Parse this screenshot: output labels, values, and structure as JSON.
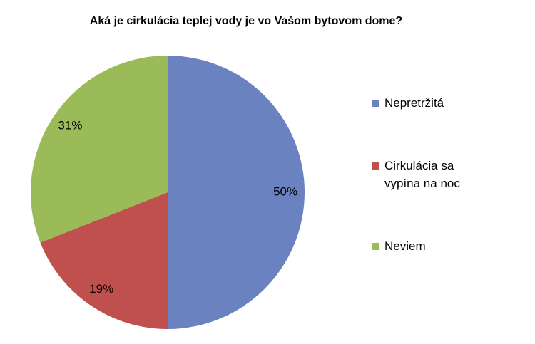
{
  "chart_data": {
    "type": "pie",
    "title": "Aká je cirkulácia teplej vody je vo Vašom bytovom dome?",
    "categories": [
      "Nepretržitá",
      "Cirkulácia sa vypína na noc",
      "Neviem"
    ],
    "values": [
      50,
      19,
      31
    ],
    "value_labels": [
      "50%",
      "19%",
      "31%"
    ],
    "colors": [
      "#6b82c1",
      "#c0504d",
      "#9bbb59"
    ],
    "legend": "right"
  }
}
